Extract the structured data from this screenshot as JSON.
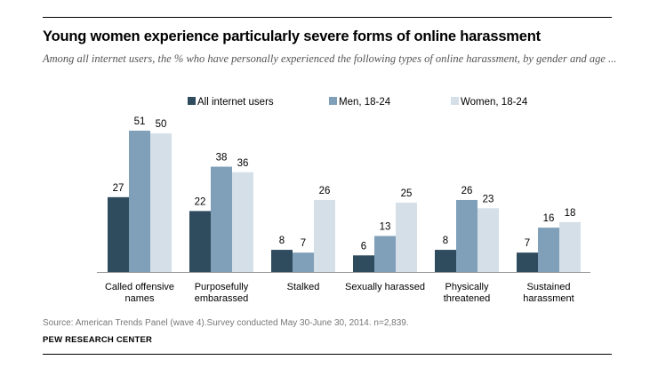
{
  "title": "Young women experience particularly severe forms of online harassment",
  "subtitle": "Among all internet users, the % who have personally experienced the following types of online harassment, by gender and age ...",
  "source": "Source: American Trends Panel (wave 4).Survey conducted May 30-June 30, 2014. n=2,839.",
  "organization": "PEW RESEARCH CENTER",
  "colors": {
    "all_users": "#2f4b5e",
    "men": "#809fb8",
    "women": "#d4dfe8"
  },
  "chart_data": {
    "type": "bar",
    "categories": [
      [
        "Called offensive",
        "names"
      ],
      [
        "Purposefully",
        "embarassed"
      ],
      [
        "Stalked"
      ],
      [
        "Sexually harassed"
      ],
      [
        "Physically",
        "threatened"
      ],
      [
        "Sustained",
        "harassment"
      ]
    ],
    "series": [
      {
        "name": "All internet users",
        "values": [
          27,
          22,
          8,
          6,
          8,
          7
        ]
      },
      {
        "name": "Men, 18-24",
        "values": [
          51,
          38,
          7,
          13,
          26,
          16
        ]
      },
      {
        "name": "Women, 18-24",
        "values": [
          50,
          36,
          26,
          25,
          23,
          18
        ]
      }
    ],
    "ylim": [
      0,
      51
    ],
    "data_labels": true,
    "legend_position": "top-center",
    "grid": false,
    "xlabel": "",
    "ylabel": ""
  }
}
